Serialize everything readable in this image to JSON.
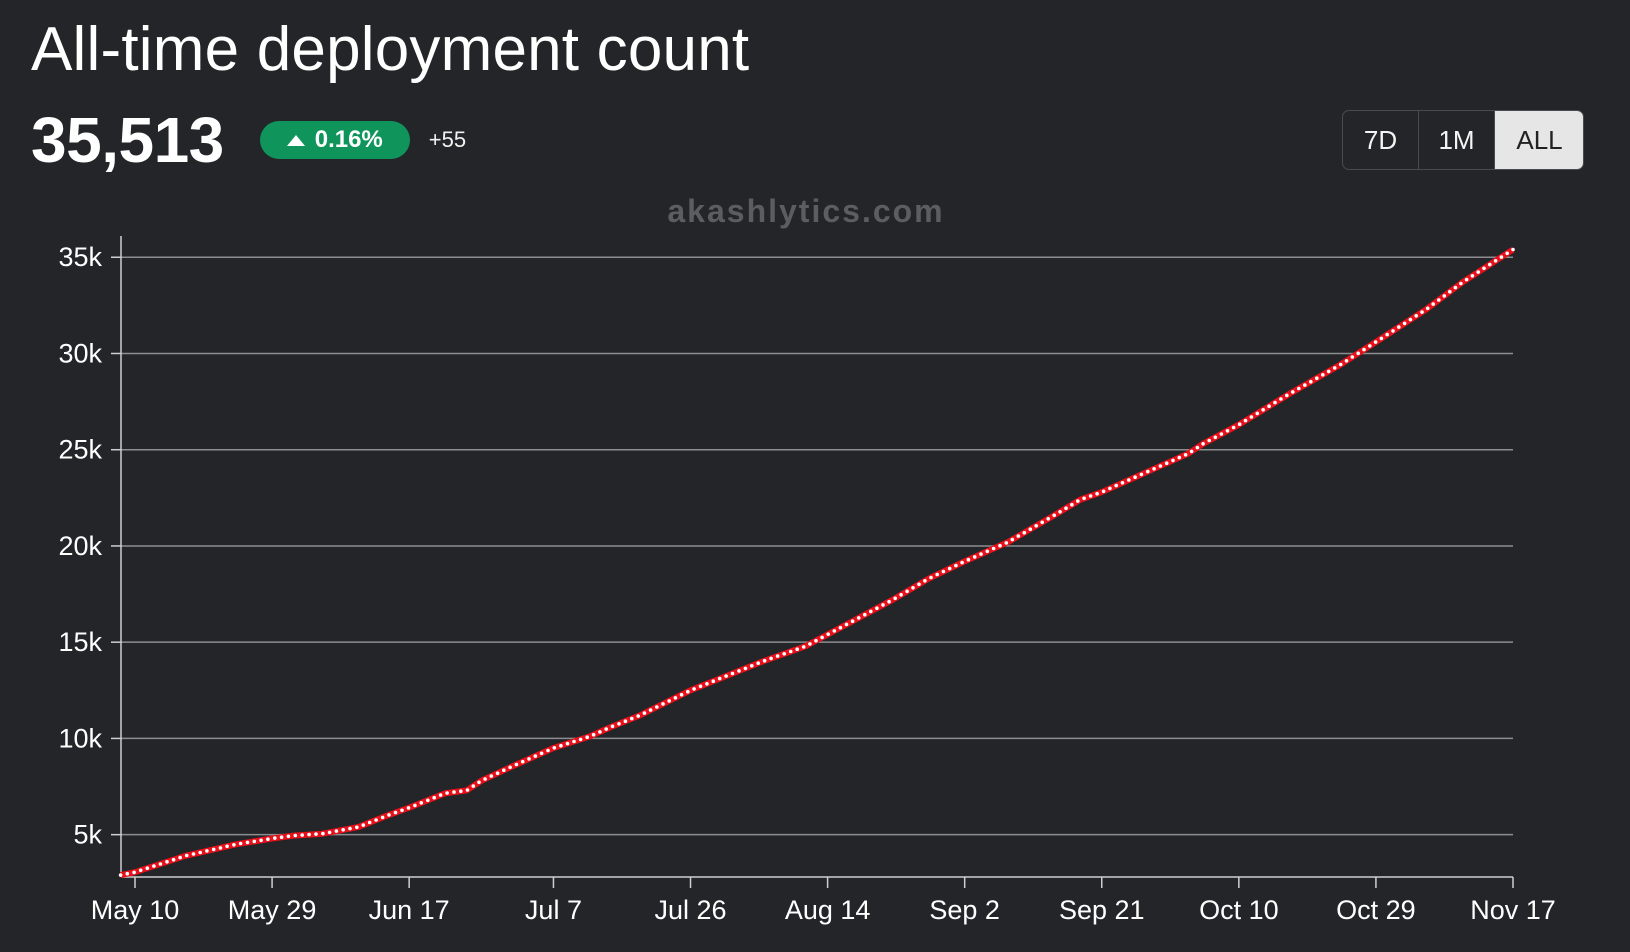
{
  "title": "All-time deployment count",
  "stats": {
    "value": "35,513",
    "change_pct": "0.16%",
    "delta": "+55"
  },
  "range": {
    "options": [
      "7D",
      "1M",
      "ALL"
    ],
    "selected": "ALL"
  },
  "watermark": "akashlytics.com",
  "colors": {
    "background": "#242528",
    "badge": "#0f955c",
    "line": "#e8101a",
    "grid": "#8c8d91"
  },
  "chart_data": {
    "type": "line",
    "title": "All-time deployment count",
    "xlabel": "",
    "ylabel": "",
    "x_ticks": [
      "May 10",
      "May 29",
      "Jun 17",
      "Jul 7",
      "Jul 26",
      "Aug 14",
      "Sep 2",
      "Sep 21",
      "Oct 10",
      "Oct 29",
      "Nov 17"
    ],
    "y_ticks": [
      "5k",
      "10k",
      "15k",
      "20k",
      "25k",
      "30k",
      "35k"
    ],
    "ylim": [
      2800,
      36000
    ],
    "grid": true,
    "series": [
      {
        "points": [
          [
            "May 8",
            2900
          ],
          [
            "May 10",
            3050
          ],
          [
            "May 17",
            3900
          ],
          [
            "May 24",
            4500
          ],
          [
            "May 29",
            4800
          ],
          [
            "Jun 1",
            4950
          ],
          [
            "Jun 5",
            5050
          ],
          [
            "Jun 10",
            5400
          ],
          [
            "Jun 14",
            6000
          ],
          [
            "Jun 17",
            6400
          ],
          [
            "Jun 22",
            7150
          ],
          [
            "Jun 25",
            7300
          ],
          [
            "Jun 27",
            7800
          ],
          [
            "Jul 1",
            8500
          ],
          [
            "Jul 7",
            9500
          ],
          [
            "Jul 12",
            10100
          ],
          [
            "Jul 15",
            10600
          ],
          [
            "Jul 19",
            11200
          ],
          [
            "Jul 26",
            12500
          ],
          [
            "Aug 1",
            13400
          ],
          [
            "Aug 5",
            14000
          ],
          [
            "Aug 11",
            14800
          ],
          [
            "Aug 14",
            15400
          ],
          [
            "Aug 18",
            16200
          ],
          [
            "Aug 23",
            17200
          ],
          [
            "Aug 28",
            18300
          ],
          [
            "Sep 2",
            19200
          ],
          [
            "Sep 8",
            20200
          ],
          [
            "Sep 14",
            21500
          ],
          [
            "Sep 18",
            22400
          ],
          [
            "Sep 21",
            22800
          ],
          [
            "Sep 27",
            23800
          ],
          [
            "Oct 3",
            24800
          ],
          [
            "Oct 5",
            25300
          ],
          [
            "Oct 10",
            26300
          ],
          [
            "Oct 17",
            27900
          ],
          [
            "Oct 24",
            29400
          ],
          [
            "Oct 29",
            30600
          ],
          [
            "Nov 5",
            32300
          ],
          [
            "Nov 10",
            33700
          ],
          [
            "Nov 17",
            35400
          ]
        ]
      }
    ]
  }
}
